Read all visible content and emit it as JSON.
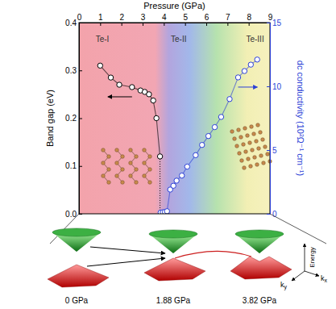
{
  "chart_data": {
    "type": "line",
    "xlabel": "Pressure (GPa)",
    "ylabel": "Band gap (eV)",
    "y2label": "dc conductivity (10²Ω⁻¹ cm⁻¹)",
    "xlim": [
      0,
      9
    ],
    "xticks": [
      0,
      1,
      2,
      3,
      4,
      5,
      6,
      7,
      8,
      9
    ],
    "ylim": [
      0,
      0.4
    ],
    "yticks": [
      {
        "value": 0,
        "label": "0.0"
      },
      0.1,
      0.2,
      0.3,
      0.4
    ],
    "y2lim": [
      0,
      15
    ],
    "y2ticks": [
      0,
      5,
      10,
      15
    ],
    "grid": false,
    "series": [
      {
        "x": [
          1.0,
          1.5,
          1.9,
          2.5,
          2.9,
          3.1,
          3.3,
          3.5,
          3.65,
          3.82
        ],
        "values": [
          0.31,
          0.285,
          0.27,
          0.265,
          0.258,
          0.255,
          0.25,
          0.237,
          0.2,
          0.12
        ],
        "color": "#000000",
        "marker": "circle",
        "line_style": "solid",
        "axis": "y"
      },
      {
        "x": [
          3.85,
          3.95,
          4.05,
          4.15,
          4.3,
          4.45,
          4.6,
          4.85,
          5.1,
          5.5,
          5.8,
          6.1,
          6.4,
          6.7,
          7.1,
          7.5,
          7.8,
          8.1,
          8.4
        ],
        "values": [
          0.1,
          0.12,
          0.15,
          0.2,
          1.9,
          2.2,
          2.6,
          3.0,
          3.7,
          4.6,
          5.4,
          6.1,
          6.8,
          7.6,
          9.0,
          10.7,
          11.2,
          11.7,
          12.1
        ],
        "color": "#2b3fd6",
        "marker": "circle",
        "line_style": "solid",
        "axis": "y2"
      }
    ],
    "annotations": [
      {
        "text": "Te-I",
        "x": 1.1,
        "y": 0.36
      },
      {
        "text": "Te-II",
        "x": 4.7,
        "y": 0.36
      },
      {
        "text": "Te-III",
        "x": 8.3,
        "y": 0.36
      }
    ],
    "band_panels": {
      "labels": [
        "0 GPa",
        "1.88 GPa",
        "3.82 GPa"
      ],
      "axis_labels": [
        "Energy",
        "kx",
        "ky"
      ]
    }
  }
}
